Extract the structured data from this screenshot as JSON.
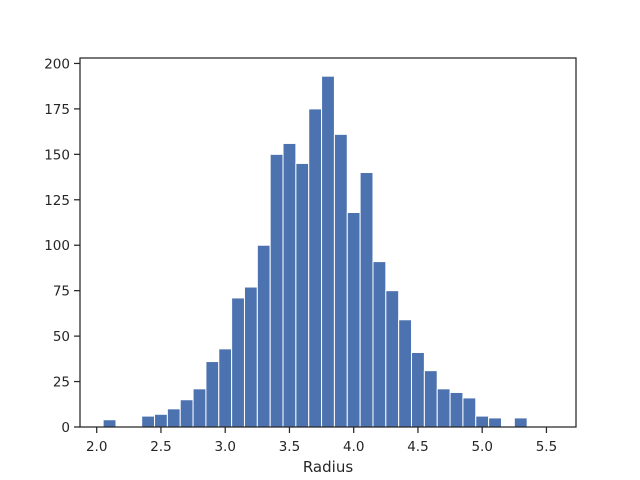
{
  "chart_data": {
    "type": "bar",
    "subtype": "histogram",
    "xlabel": "Radius",
    "ylabel": "",
    "title": "",
    "xlim": [
      1.87,
      5.73
    ],
    "ylim": [
      0,
      203
    ],
    "bin_width": 0.1,
    "bins": [
      {
        "x0": 2.05,
        "count": 4
      },
      {
        "x0": 2.15,
        "count": 0
      },
      {
        "x0": 2.25,
        "count": 0
      },
      {
        "x0": 2.35,
        "count": 6
      },
      {
        "x0": 2.45,
        "count": 7
      },
      {
        "x0": 2.55,
        "count": 10
      },
      {
        "x0": 2.65,
        "count": 15
      },
      {
        "x0": 2.75,
        "count": 21
      },
      {
        "x0": 2.85,
        "count": 36
      },
      {
        "x0": 2.95,
        "count": 43
      },
      {
        "x0": 3.05,
        "count": 71
      },
      {
        "x0": 3.15,
        "count": 77
      },
      {
        "x0": 3.25,
        "count": 100
      },
      {
        "x0": 3.35,
        "count": 150
      },
      {
        "x0": 3.45,
        "count": 156
      },
      {
        "x0": 3.55,
        "count": 145
      },
      {
        "x0": 3.65,
        "count": 175
      },
      {
        "x0": 3.75,
        "count": 193
      },
      {
        "x0": 3.85,
        "count": 161
      },
      {
        "x0": 3.95,
        "count": 118
      },
      {
        "x0": 4.05,
        "count": 140
      },
      {
        "x0": 4.15,
        "count": 91
      },
      {
        "x0": 4.25,
        "count": 75
      },
      {
        "x0": 4.35,
        "count": 59
      },
      {
        "x0": 4.45,
        "count": 41
      },
      {
        "x0": 4.55,
        "count": 31
      },
      {
        "x0": 4.65,
        "count": 21
      },
      {
        "x0": 4.75,
        "count": 19
      },
      {
        "x0": 4.85,
        "count": 16
      },
      {
        "x0": 4.95,
        "count": 6
      },
      {
        "x0": 5.05,
        "count": 5
      },
      {
        "x0": 5.15,
        "count": 0
      },
      {
        "x0": 5.25,
        "count": 5
      }
    ],
    "x_ticks": [
      "2.0",
      "2.5",
      "3.0",
      "3.5",
      "4.0",
      "4.5",
      "5.0",
      "5.5"
    ],
    "y_ticks": [
      "0",
      "25",
      "50",
      "75",
      "100",
      "125",
      "150",
      "175",
      "200"
    ],
    "bar_color": "#4c72b0",
    "edge_color": "#ffffff",
    "grid": false,
    "legend": "none"
  }
}
